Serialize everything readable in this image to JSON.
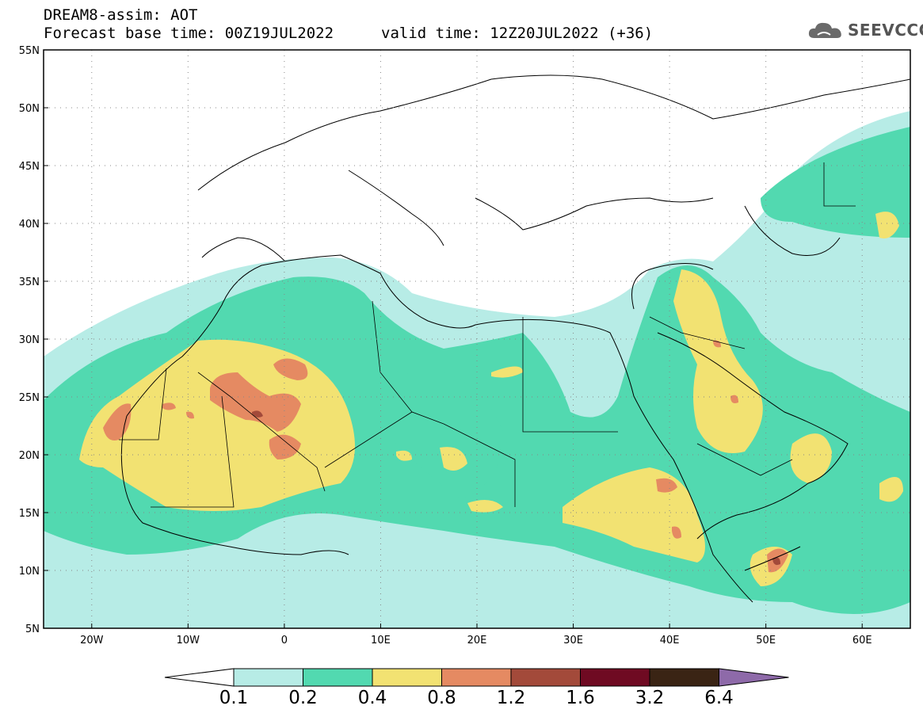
{
  "header": {
    "line1": "DREAM8-assim: AOT",
    "line2_left": "Forecast base time: 00Z19JUL2022",
    "line2_right": "valid time: 12Z20JUL2022 (+36)"
  },
  "logo": {
    "text": "SEEVCCC",
    "icon": "cloud-icon"
  },
  "map": {
    "lon_range": [
      -25,
      65
    ],
    "lat_range": [
      5,
      55
    ],
    "lon_ticks": [
      {
        "lon": -20,
        "label": "20W"
      },
      {
        "lon": -10,
        "label": "10W"
      },
      {
        "lon": 0,
        "label": "0"
      },
      {
        "lon": 10,
        "label": "10E"
      },
      {
        "lon": 20,
        "label": "20E"
      },
      {
        "lon": 30,
        "label": "30E"
      },
      {
        "lon": 40,
        "label": "40E"
      },
      {
        "lon": 50,
        "label": "50E"
      },
      {
        "lon": 60,
        "label": "60E"
      }
    ],
    "lat_ticks": [
      {
        "lat": 55,
        "label": "55N"
      },
      {
        "lat": 50,
        "label": "50N"
      },
      {
        "lat": 45,
        "label": "45N"
      },
      {
        "lat": 40,
        "label": "40N"
      },
      {
        "lat": 35,
        "label": "35N"
      },
      {
        "lat": 30,
        "label": "30N"
      },
      {
        "lat": 25,
        "label": "25N"
      },
      {
        "lat": 20,
        "label": "20N"
      },
      {
        "lat": 15,
        "label": "15N"
      },
      {
        "lat": 10,
        "label": "10N"
      },
      {
        "lat": 5,
        "label": "5N"
      }
    ],
    "gridlines": "dotted"
  },
  "colorbar": {
    "labels": [
      "0.1",
      "0.2",
      "0.4",
      "0.8",
      "1.2",
      "1.6",
      "3.2",
      "6.4"
    ],
    "colors": [
      "#ffffff",
      "#b7ece6",
      "#52d9b0",
      "#f2e272",
      "#e58a62",
      "#a34a3a",
      "#6f0a22",
      "#3a2414",
      "#8e6aa9"
    ]
  }
}
